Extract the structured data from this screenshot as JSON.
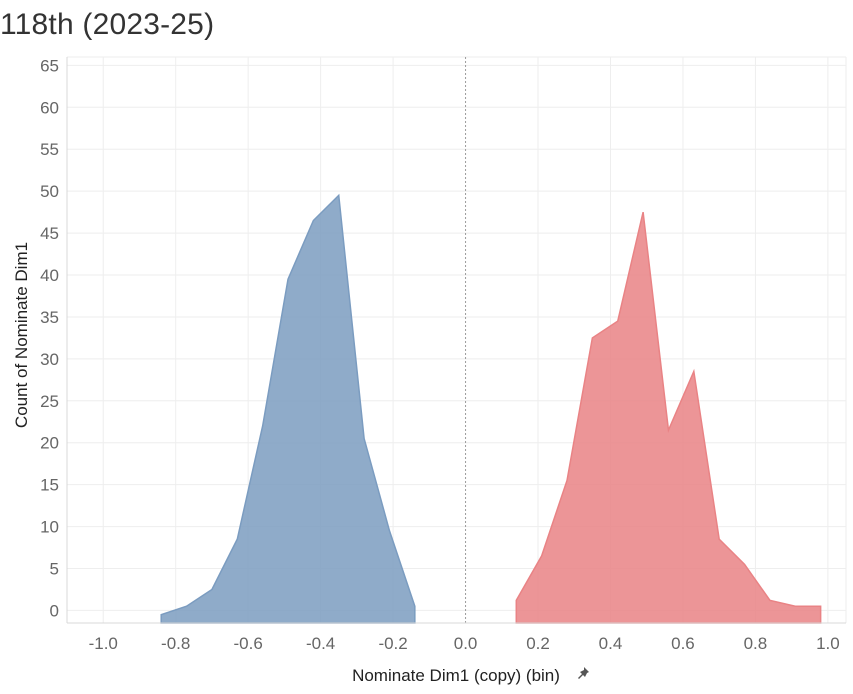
{
  "page": {
    "title": "118th (2023-25)"
  },
  "chart_data": {
    "type": "area",
    "title": "118th (2023-25)",
    "xlabel": "Nominate Dim1 (copy) (bin)",
    "ylabel": "Count of Nominate Dim1",
    "xlim": [
      -1.1,
      1.05
    ],
    "ylim": [
      -1.5,
      66
    ],
    "x_ticks": [
      -1.0,
      -0.8,
      -0.6,
      -0.4,
      -0.2,
      0.0,
      0.2,
      0.4,
      0.6,
      0.8,
      1.0
    ],
    "x_tick_labels": [
      "-1.0",
      "-0.8",
      "-0.6",
      "-0.4",
      "-0.2",
      "0.0",
      "0.2",
      "0.4",
      "0.6",
      "0.8",
      "1.0"
    ],
    "y_ticks": [
      0,
      5,
      10,
      15,
      20,
      25,
      30,
      35,
      40,
      45,
      50,
      55,
      60,
      65
    ],
    "y_tick_labels": [
      "0",
      "5",
      "10",
      "15",
      "20",
      "25",
      "30",
      "35",
      "40",
      "45",
      "50",
      "55",
      "60",
      "65"
    ],
    "zero_reference_line": true,
    "grid": true,
    "series": [
      {
        "color": "#7b9cc0",
        "points": [
          {
            "x": -0.84,
            "y": -0.5
          },
          {
            "x": -0.77,
            "y": 0.5
          },
          {
            "x": -0.7,
            "y": 2.5
          },
          {
            "x": -0.63,
            "y": 8.5
          },
          {
            "x": -0.56,
            "y": 22
          },
          {
            "x": -0.49,
            "y": 39.5
          },
          {
            "x": -0.42,
            "y": 46.5
          },
          {
            "x": -0.35,
            "y": 49.5
          },
          {
            "x": -0.28,
            "y": 20.5
          },
          {
            "x": -0.21,
            "y": 9.5
          },
          {
            "x": -0.14,
            "y": 0.5
          }
        ]
      },
      {
        "color": "#e98385",
        "points": [
          {
            "x": 0.14,
            "y": 1.2
          },
          {
            "x": 0.21,
            "y": 6.5
          },
          {
            "x": 0.28,
            "y": 15.5
          },
          {
            "x": 0.35,
            "y": 32.5
          },
          {
            "x": 0.42,
            "y": 34.5
          },
          {
            "x": 0.49,
            "y": 47.5
          },
          {
            "x": 0.56,
            "y": 21.5
          },
          {
            "x": 0.63,
            "y": 28.5
          },
          {
            "x": 0.7,
            "y": 8.5
          },
          {
            "x": 0.77,
            "y": 5.5
          },
          {
            "x": 0.84,
            "y": 1.2
          },
          {
            "x": 0.91,
            "y": 0.5
          },
          {
            "x": 0.98,
            "y": 0.5
          }
        ]
      }
    ]
  }
}
